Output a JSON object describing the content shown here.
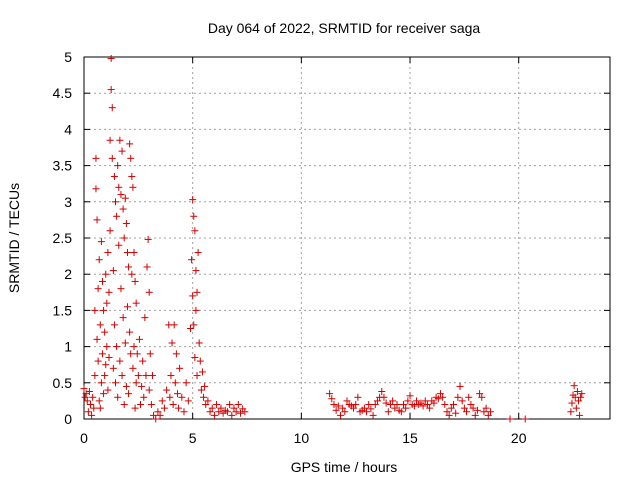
{
  "chart_data": {
    "type": "scatter",
    "title": "Day 064 of 2022, SRMTID for receiver saga",
    "xlabel": "GPS time / hours",
    "ylabel": "SRMTID / TECUs",
    "xlim": [
      0,
      24.2
    ],
    "ylim": [
      0,
      5
    ],
    "x_ticks": [
      0,
      5,
      10,
      15,
      20
    ],
    "x_tick_labels": [
      "0",
      "5",
      "10",
      "15",
      "20"
    ],
    "y_ticks": [
      0,
      0.5,
      1,
      1.5,
      2,
      2.5,
      3,
      3.5,
      4,
      4.5,
      5
    ],
    "y_tick_labels": [
      "0",
      "0.5",
      "1",
      "1.5",
      "2",
      "2.5",
      "3",
      "3.5",
      "4",
      "4.5",
      "5"
    ],
    "grid": true,
    "marker": "+",
    "color": "#d40000",
    "series": [
      {
        "name": "SRMTID",
        "points": [
          [
            0.0,
            0.42
          ],
          [
            0.05,
            0.3
          ],
          [
            0.1,
            0.35
          ],
          [
            0.15,
            0.25
          ],
          [
            0.2,
            0.1
          ],
          [
            0.25,
            0.38
          ],
          [
            0.3,
            0.2
          ],
          [
            0.35,
            0.05
          ],
          [
            0.4,
            0.3
          ],
          [
            0.45,
            0.15
          ],
          [
            0.5,
            0.6
          ],
          [
            0.5,
            1.5
          ],
          [
            0.55,
            3.6
          ],
          [
            0.55,
            3.18
          ],
          [
            0.6,
            2.75
          ],
          [
            0.6,
            1.1
          ],
          [
            0.65,
            0.8
          ],
          [
            0.65,
            1.8
          ],
          [
            0.7,
            0.25
          ],
          [
            0.7,
            2.2
          ],
          [
            0.75,
            0.15
          ],
          [
            0.75,
            1.3
          ],
          [
            0.8,
            0.5
          ],
          [
            0.8,
            2.45
          ],
          [
            0.85,
            1.9
          ],
          [
            0.85,
            0.9
          ],
          [
            0.9,
            1.5
          ],
          [
            0.9,
            0.35
          ],
          [
            0.95,
            0.6
          ],
          [
            0.95,
            1.2
          ],
          [
            1.0,
            2.0
          ],
          [
            1.0,
            0.75
          ],
          [
            1.05,
            1.0
          ],
          [
            1.05,
            1.6
          ],
          [
            1.1,
            0.4
          ],
          [
            1.1,
            2.3
          ],
          [
            1.15,
            0.85
          ],
          [
            1.15,
            1.75
          ],
          [
            1.2,
            3.85
          ],
          [
            1.2,
            2.6
          ],
          [
            1.25,
            4.55
          ],
          [
            1.25,
            4.98
          ],
          [
            1.3,
            4.3
          ],
          [
            1.3,
            3.6
          ],
          [
            1.35,
            2.05
          ],
          [
            1.35,
            0.7
          ],
          [
            1.4,
            3.35
          ],
          [
            1.4,
            1.3
          ],
          [
            1.45,
            3.0
          ],
          [
            1.45,
            0.5
          ],
          [
            1.5,
            2.8
          ],
          [
            1.5,
            1.0
          ],
          [
            1.55,
            3.5
          ],
          [
            1.55,
            0.3
          ],
          [
            1.6,
            3.2
          ],
          [
            1.6,
            2.4
          ],
          [
            1.65,
            3.85
          ],
          [
            1.65,
            0.8
          ],
          [
            1.7,
            3.1
          ],
          [
            1.7,
            1.8
          ],
          [
            1.75,
            3.7
          ],
          [
            1.75,
            0.6
          ],
          [
            1.8,
            2.9
          ],
          [
            1.8,
            1.4
          ],
          [
            1.85,
            2.5
          ],
          [
            1.85,
            0.2
          ],
          [
            1.9,
            3.05
          ],
          [
            1.9,
            1.05
          ],
          [
            1.95,
            2.7
          ],
          [
            1.95,
            0.45
          ],
          [
            2.0,
            2.3
          ],
          [
            2.0,
            1.55
          ],
          [
            2.05,
            2.1
          ],
          [
            2.05,
            0.35
          ],
          [
            2.1,
            3.8
          ],
          [
            2.1,
            1.2
          ],
          [
            2.15,
            3.6
          ],
          [
            2.15,
            0.9
          ],
          [
            2.2,
            3.35
          ],
          [
            2.2,
            2.0
          ],
          [
            2.25,
            3.2
          ],
          [
            2.25,
            0.7
          ],
          [
            2.3,
            2.3
          ],
          [
            2.3,
            1.0
          ],
          [
            2.35,
            1.9
          ],
          [
            2.35,
            0.15
          ],
          [
            2.4,
            1.6
          ],
          [
            2.4,
            0.5
          ],
          [
            2.45,
            0.9
          ],
          [
            2.5,
            0.6
          ],
          [
            2.55,
            1.1
          ],
          [
            2.6,
            0.2
          ],
          [
            2.65,
            0.45
          ],
          [
            2.7,
            0.8
          ],
          [
            2.75,
            0.3
          ],
          [
            2.8,
            1.4
          ],
          [
            2.85,
            0.6
          ],
          [
            2.9,
            2.1
          ],
          [
            2.95,
            2.48
          ],
          [
            3.0,
            1.75
          ],
          [
            3.0,
            0.4
          ],
          [
            3.05,
            0.9
          ],
          [
            3.1,
            0.2
          ],
          [
            3.15,
            0.6
          ],
          [
            3.2,
            0.05
          ],
          [
            3.3,
            0.0
          ],
          [
            3.4,
            0.1
          ],
          [
            3.5,
            0.05
          ],
          [
            3.6,
            0.25
          ],
          [
            3.7,
            0.15
          ],
          [
            3.8,
            0.4
          ],
          [
            3.9,
            1.3
          ],
          [
            3.95,
            0.3
          ],
          [
            4.0,
            0.6
          ],
          [
            4.05,
            1.05
          ],
          [
            4.1,
            0.2
          ],
          [
            4.15,
            1.3
          ],
          [
            4.2,
            0.5
          ],
          [
            4.25,
            0.9
          ],
          [
            4.3,
            0.35
          ],
          [
            4.35,
            0.15
          ],
          [
            4.4,
            0.7
          ],
          [
            4.5,
            0.3
          ],
          [
            4.6,
            0.1
          ],
          [
            4.7,
            0.5
          ],
          [
            4.8,
            0.25
          ],
          [
            4.9,
            1.25
          ],
          [
            4.95,
            2.2
          ],
          [
            5.0,
            3.03
          ],
          [
            5.0,
            1.7
          ],
          [
            5.05,
            2.8
          ],
          [
            5.05,
            1.3
          ],
          [
            5.1,
            2.6
          ],
          [
            5.1,
            0.85
          ],
          [
            5.15,
            2.05
          ],
          [
            5.15,
            1.5
          ],
          [
            5.2,
            1.75
          ],
          [
            5.2,
            0.6
          ],
          [
            5.25,
            2.3
          ],
          [
            5.3,
            1.05
          ],
          [
            5.35,
            0.8
          ],
          [
            5.4,
            0.4
          ],
          [
            5.45,
            0.65
          ],
          [
            5.5,
            0.3
          ],
          [
            5.55,
            0.45
          ],
          [
            5.6,
            0.2
          ],
          [
            5.7,
            0.25
          ],
          [
            5.8,
            0.1
          ],
          [
            5.9,
            0.15
          ],
          [
            6.0,
            0.05
          ],
          [
            6.1,
            0.2
          ],
          [
            6.2,
            0.1
          ],
          [
            6.3,
            0.15
          ],
          [
            6.4,
            0.08
          ],
          [
            6.5,
            0.12
          ],
          [
            6.6,
            0.1
          ],
          [
            6.7,
            0.2
          ],
          [
            6.8,
            0.05
          ],
          [
            6.9,
            0.15
          ],
          [
            7.0,
            0.1
          ],
          [
            7.1,
            0.2
          ],
          [
            7.2,
            0.08
          ],
          [
            7.3,
            0.14
          ],
          [
            7.4,
            0.1
          ],
          [
            11.3,
            0.35
          ],
          [
            11.4,
            0.28
          ],
          [
            11.5,
            0.2
          ],
          [
            11.6,
            0.12
          ],
          [
            11.7,
            0.18
          ],
          [
            11.8,
            0.05
          ],
          [
            11.9,
            0.15
          ],
          [
            12.0,
            0.1
          ],
          [
            12.1,
            0.25
          ],
          [
            12.2,
            0.2
          ],
          [
            12.3,
            0.18
          ],
          [
            12.4,
            0.15
          ],
          [
            12.5,
            0.2
          ],
          [
            12.6,
            0.3
          ],
          [
            12.7,
            0.1
          ],
          [
            12.8,
            0.12
          ],
          [
            12.9,
            0.15
          ],
          [
            13.0,
            0.1
          ],
          [
            13.1,
            0.2
          ],
          [
            13.2,
            0.14
          ],
          [
            13.3,
            0.05
          ],
          [
            13.4,
            0.2
          ],
          [
            13.5,
            0.25
          ],
          [
            13.6,
            0.3
          ],
          [
            13.7,
            0.38
          ],
          [
            13.8,
            0.3
          ],
          [
            13.9,
            0.22
          ],
          [
            14.0,
            0.1
          ],
          [
            14.1,
            0.2
          ],
          [
            14.2,
            0.25
          ],
          [
            14.3,
            0.15
          ],
          [
            14.4,
            0.2
          ],
          [
            14.5,
            0.12
          ],
          [
            14.6,
            0.1
          ],
          [
            14.7,
            0.2
          ],
          [
            14.8,
            0.15
          ],
          [
            14.9,
            0.25
          ],
          [
            15.0,
            0.32
          ],
          [
            15.1,
            0.2
          ],
          [
            15.2,
            0.18
          ],
          [
            15.3,
            0.25
          ],
          [
            15.4,
            0.2
          ],
          [
            15.5,
            0.22
          ],
          [
            15.6,
            0.18
          ],
          [
            15.7,
            0.25
          ],
          [
            15.8,
            0.2
          ],
          [
            15.9,
            0.15
          ],
          [
            16.0,
            0.25
          ],
          [
            16.1,
            0.22
          ],
          [
            16.2,
            0.3
          ],
          [
            16.3,
            0.28
          ],
          [
            16.4,
            0.35
          ],
          [
            16.5,
            0.3
          ],
          [
            16.6,
            0.2
          ],
          [
            16.7,
            0.1
          ],
          [
            16.8,
            0.05
          ],
          [
            16.9,
            0.15
          ],
          [
            17.0,
            0.2
          ],
          [
            17.1,
            0.08
          ],
          [
            17.2,
            0.3
          ],
          [
            17.3,
            0.45
          ],
          [
            17.4,
            0.25
          ],
          [
            17.5,
            0.15
          ],
          [
            17.6,
            0.1
          ],
          [
            17.7,
            0.3
          ],
          [
            17.8,
            0.2
          ],
          [
            17.9,
            0.15
          ],
          [
            18.0,
            0.05
          ],
          [
            18.1,
            0.12
          ],
          [
            18.2,
            0.35
          ],
          [
            18.3,
            0.3
          ],
          [
            18.4,
            0.1
          ],
          [
            18.5,
            0.15
          ],
          [
            18.6,
            0.05
          ],
          [
            18.7,
            0.1
          ],
          [
            19.6,
            0.0
          ],
          [
            20.3,
            0.0
          ],
          [
            22.4,
            0.1
          ],
          [
            22.45,
            0.22
          ],
          [
            22.5,
            0.33
          ],
          [
            22.55,
            0.46
          ],
          [
            22.6,
            0.3
          ],
          [
            22.65,
            0.15
          ],
          [
            22.7,
            0.38
          ],
          [
            22.75,
            0.25
          ],
          [
            22.8,
            0.05
          ],
          [
            22.85,
            0.3
          ],
          [
            22.9,
            0.35
          ]
        ]
      }
    ]
  }
}
